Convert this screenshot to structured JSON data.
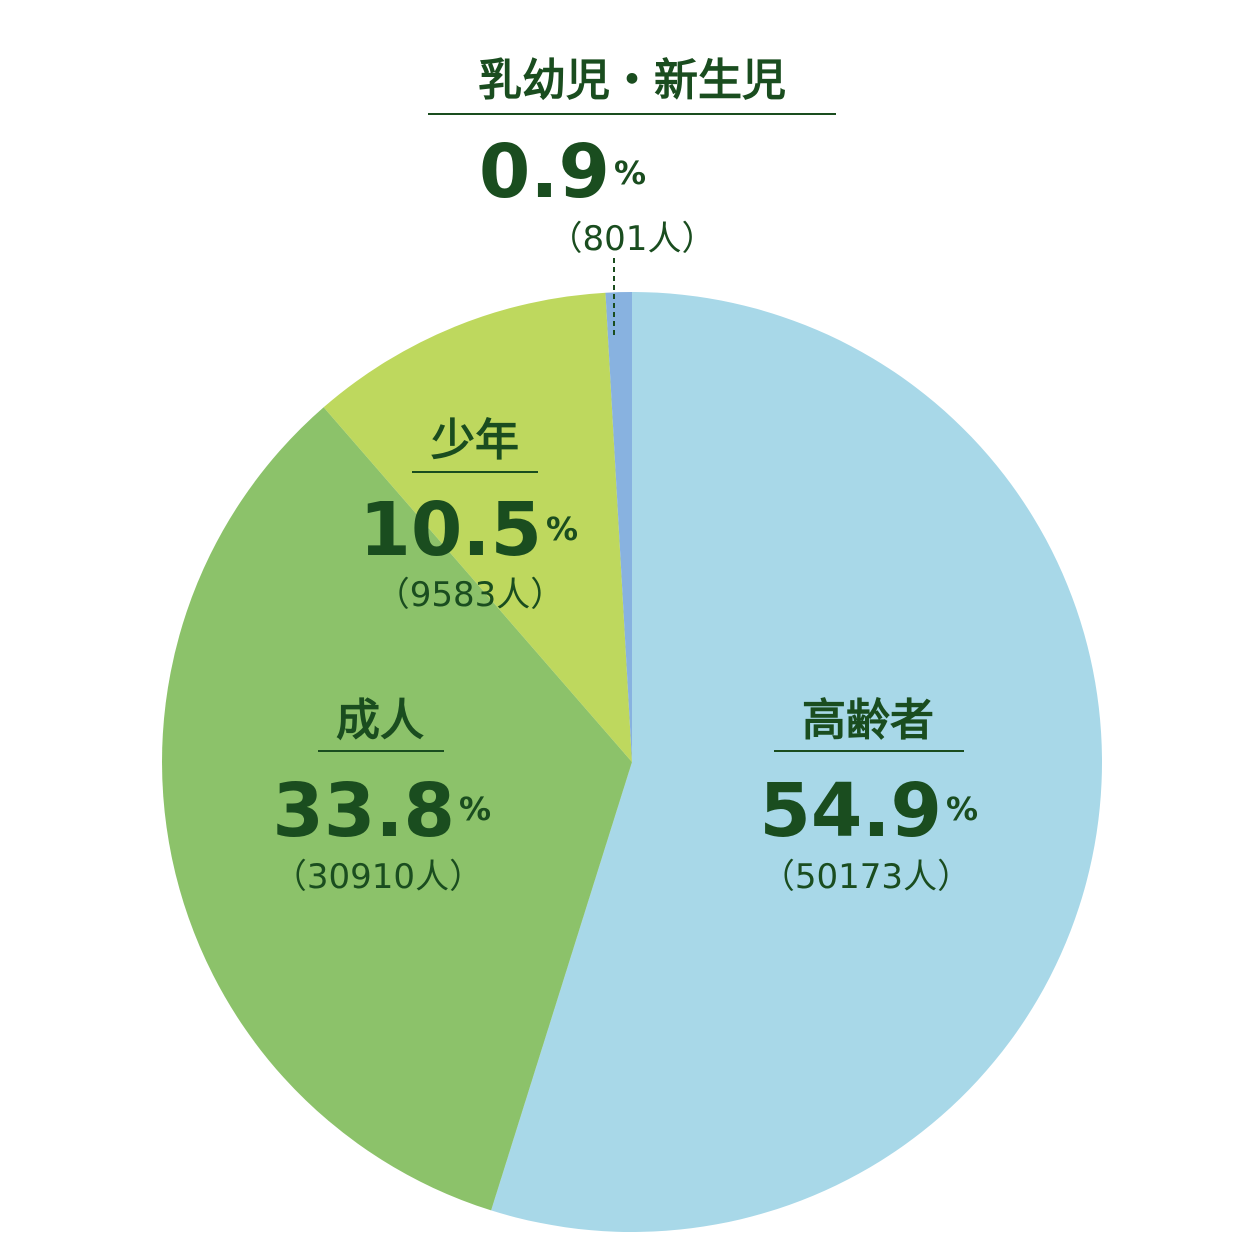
{
  "chart_data": {
    "type": "pie",
    "start": "top",
    "direction": "clockwise",
    "slices": [
      {
        "label": "高齢者",
        "percent": 54.9,
        "percent_text": "54.9",
        "count": "（50173人）",
        "color": "#a8d8e8"
      },
      {
        "label": "成人",
        "percent": 33.8,
        "percent_text": "33.8",
        "count": "（30910人）",
        "color": "#8cc26a"
      },
      {
        "label": "少年",
        "percent": 10.5,
        "percent_text": "10.5",
        "count": "（9583人）",
        "color": "#bed85e"
      },
      {
        "label": "乳幼児・新生児",
        "percent": 0.9,
        "percent_text": "0.9",
        "count": "（801人）",
        "color": "#88b2e0"
      }
    ],
    "percent_sign": "%",
    "text_color": "#1a4d1f"
  }
}
